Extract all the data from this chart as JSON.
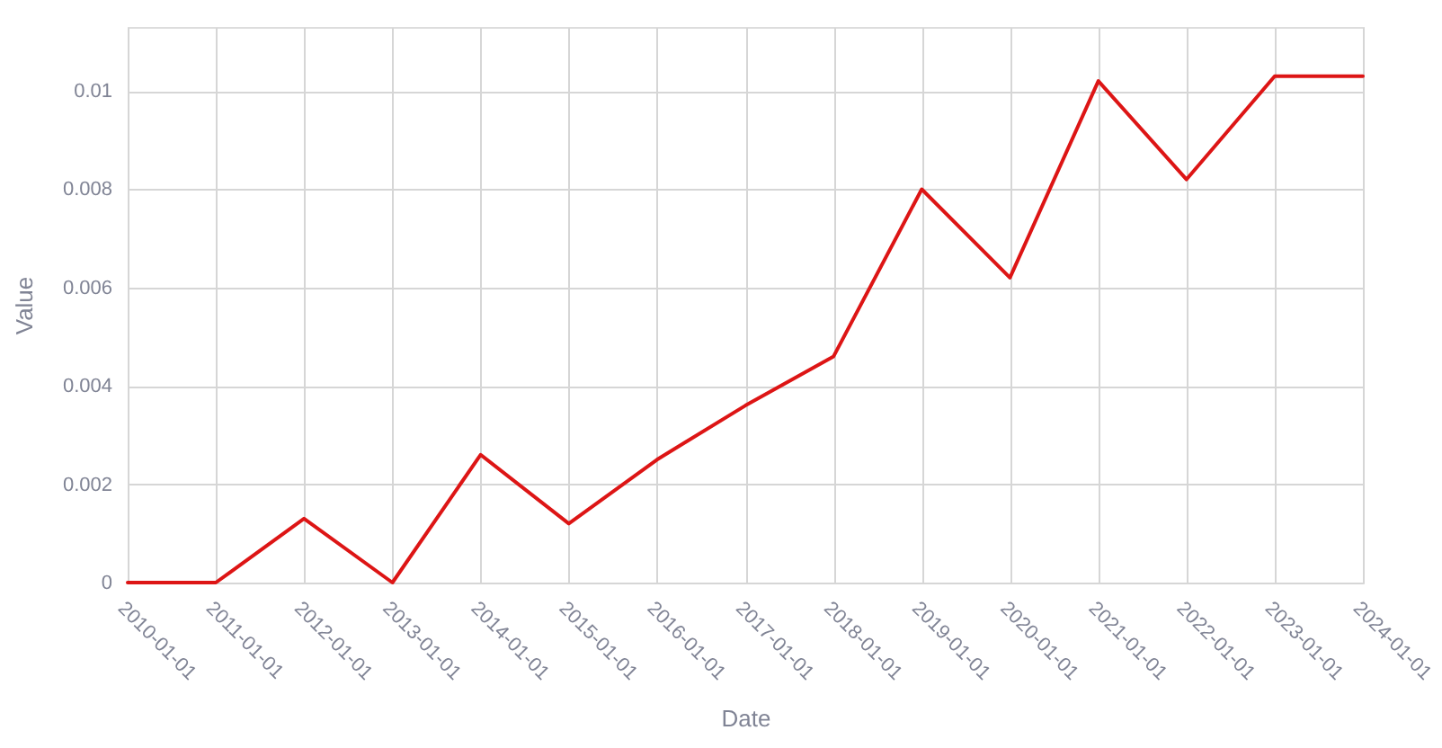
{
  "chart_data": {
    "type": "line",
    "xlabel": "Date",
    "ylabel": "Value",
    "x": [
      "2010-01-01",
      "2011-01-01",
      "2012-01-01",
      "2013-01-01",
      "2014-01-01",
      "2015-01-01",
      "2016-01-01",
      "2017-01-01",
      "2018-01-01",
      "2019-01-01",
      "2020-01-01",
      "2021-01-01",
      "2022-01-01",
      "2023-01-01",
      "2024-01-01"
    ],
    "series": [
      {
        "color": "#dd1515",
        "values": [
          0,
          0,
          0.0013,
          0,
          0.0026,
          0.0012,
          0.0025,
          0.0036,
          0.0046,
          0.008,
          0.0062,
          0.0102,
          0.0082,
          0.0103,
          0.0103
        ]
      }
    ],
    "xlim": [
      "2010-01-01",
      "2024-01-01"
    ],
    "xticks": [
      "2010-01-01",
      "2011-01-01",
      "2012-01-01",
      "2013-01-01",
      "2014-01-01",
      "2015-01-01",
      "2016-01-01",
      "2017-01-01",
      "2018-01-01",
      "2019-01-01",
      "2020-01-01",
      "2021-01-01",
      "2022-01-01",
      "2023-01-01",
      "2024-01-01"
    ],
    "ylim": [
      0,
      0.0113
    ],
    "yticks": [
      0,
      0.002,
      0.004,
      0.006,
      0.008,
      0.01
    ],
    "grid": true,
    "line_style": "solid"
  }
}
